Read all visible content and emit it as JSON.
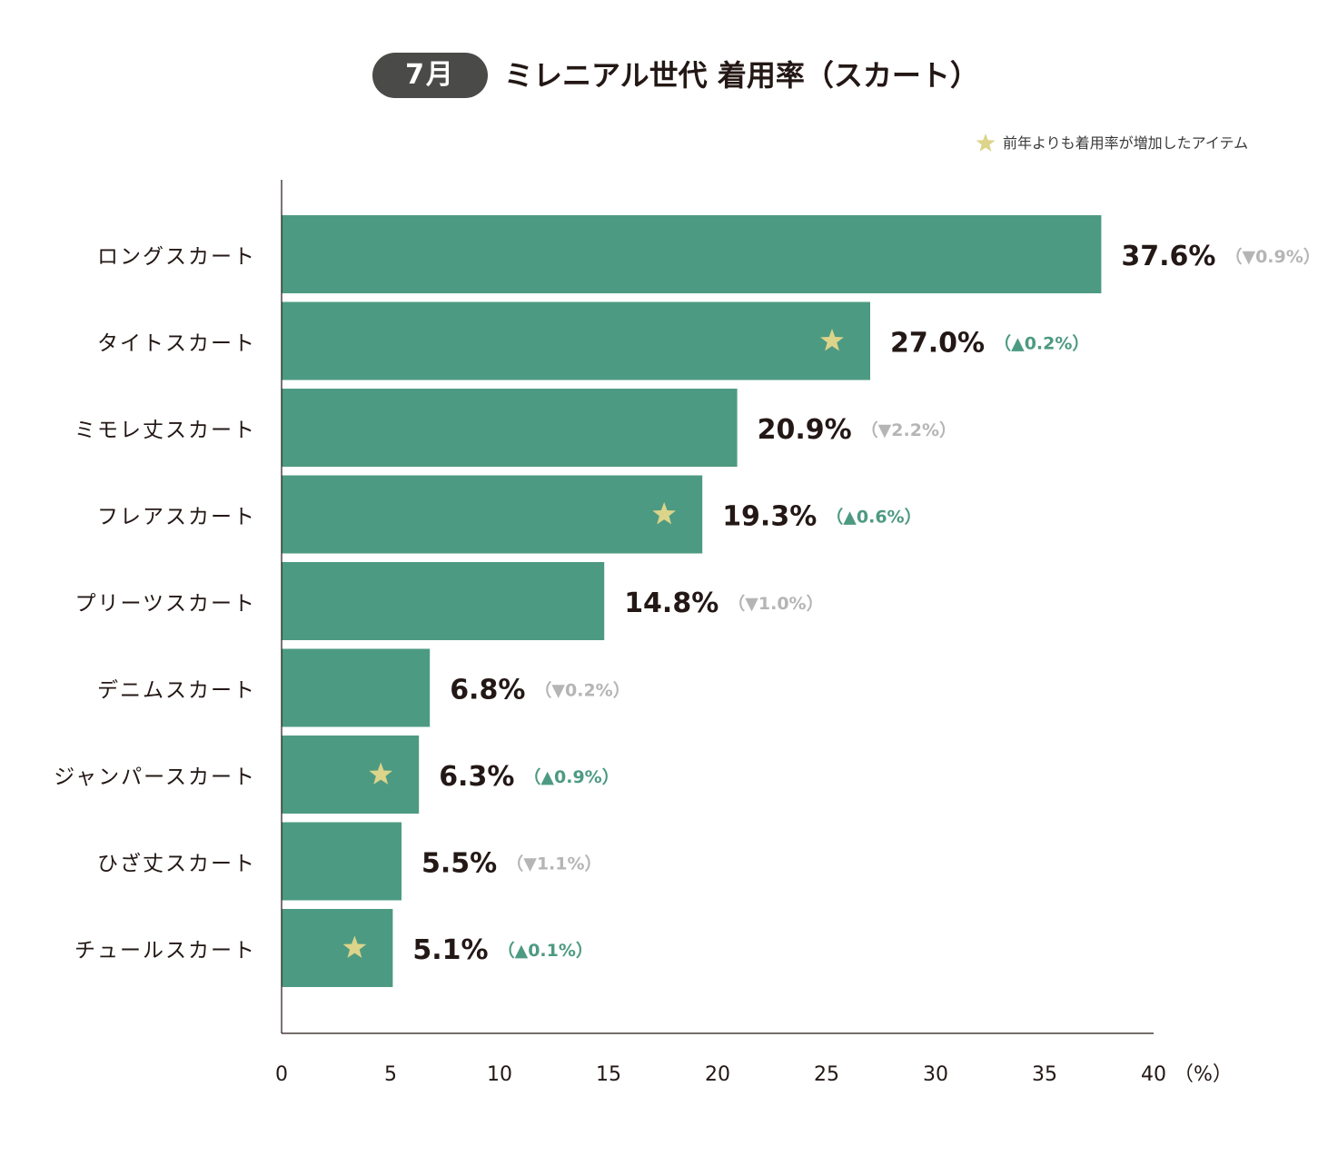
{
  "header": {
    "month_label": "7月",
    "title": "ミレニアル世代 着用率（スカート）"
  },
  "legend": {
    "star_label": "前年よりも着用率が増加したアイテム",
    "star_icon": "star-icon",
    "star_color": "#dcd48a"
  },
  "colors": {
    "bar": "#4d9a82",
    "up": "#4d9a82",
    "down": "#b5b5b5",
    "value_text": "#231815"
  },
  "chart_data": {
    "type": "bar",
    "orientation": "horizontal",
    "categories": [
      "ロングスカート",
      "タイトスカート",
      "ミモレ丈スカート",
      "フレアスカート",
      "プリーツスカート",
      "デニムスカート",
      "ジャンパースカート",
      "ひざ丈スカート",
      "チュールスカート"
    ],
    "values": [
      37.6,
      27.0,
      20.9,
      19.3,
      14.8,
      6.8,
      6.3,
      5.5,
      5.1
    ],
    "value_labels": [
      "37.6%",
      "27.0%",
      "20.9%",
      "19.3%",
      "14.8%",
      "6.8%",
      "6.3%",
      "5.5%",
      "5.1%"
    ],
    "changes": [
      {
        "direction": "down",
        "label": "（▼0.9%）"
      },
      {
        "direction": "up",
        "label": "（▲0.2%）"
      },
      {
        "direction": "down",
        "label": "（▼2.2%）"
      },
      {
        "direction": "up",
        "label": "（▲0.6%）"
      },
      {
        "direction": "down",
        "label": "（▼1.0%）"
      },
      {
        "direction": "down",
        "label": "（▼0.2%）"
      },
      {
        "direction": "up",
        "label": "（▲0.9%）"
      },
      {
        "direction": "down",
        "label": "（▼1.1%）"
      },
      {
        "direction": "up",
        "label": "（▲0.1%）"
      }
    ],
    "starred": [
      false,
      true,
      false,
      true,
      false,
      false,
      true,
      false,
      true
    ],
    "xlim": [
      0,
      40
    ],
    "xticks": [
      0,
      5,
      10,
      15,
      20,
      25,
      30,
      35,
      40
    ],
    "xtick_labels": [
      "0",
      "5",
      "10",
      "15",
      "20",
      "25",
      "30",
      "35",
      "40"
    ],
    "x_unit": "（%）",
    "grid": false
  }
}
